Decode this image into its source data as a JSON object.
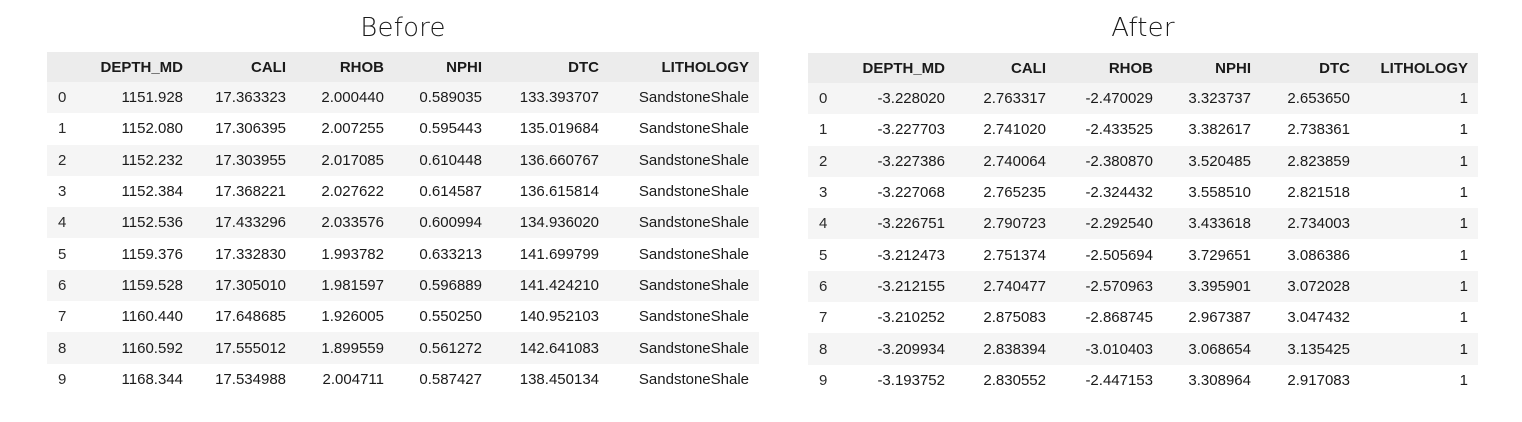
{
  "before": {
    "title": "Before",
    "columns": [
      "",
      "DEPTH_MD",
      "CALI",
      "RHOB",
      "NPHI",
      "DTC",
      "LITHOLOGY"
    ],
    "rows": [
      [
        "0",
        "1151.928",
        "17.363323",
        "2.000440",
        "0.589035",
        "133.393707",
        "SandstoneShale"
      ],
      [
        "1",
        "1152.080",
        "17.306395",
        "2.007255",
        "0.595443",
        "135.019684",
        "SandstoneShale"
      ],
      [
        "2",
        "1152.232",
        "17.303955",
        "2.017085",
        "0.610448",
        "136.660767",
        "SandstoneShale"
      ],
      [
        "3",
        "1152.384",
        "17.368221",
        "2.027622",
        "0.614587",
        "136.615814",
        "SandstoneShale"
      ],
      [
        "4",
        "1152.536",
        "17.433296",
        "2.033576",
        "0.600994",
        "134.936020",
        "SandstoneShale"
      ],
      [
        "5",
        "1159.376",
        "17.332830",
        "1.993782",
        "0.633213",
        "141.699799",
        "SandstoneShale"
      ],
      [
        "6",
        "1159.528",
        "17.305010",
        "1.981597",
        "0.596889",
        "141.424210",
        "SandstoneShale"
      ],
      [
        "7",
        "1160.440",
        "17.648685",
        "1.926005",
        "0.550250",
        "140.952103",
        "SandstoneShale"
      ],
      [
        "8",
        "1160.592",
        "17.555012",
        "1.899559",
        "0.561272",
        "142.641083",
        "SandstoneShale"
      ],
      [
        "9",
        "1168.344",
        "17.534988",
        "2.004711",
        "0.587427",
        "138.450134",
        "SandstoneShale"
      ]
    ]
  },
  "after": {
    "title": "After",
    "columns": [
      "",
      "DEPTH_MD",
      "CALI",
      "RHOB",
      "NPHI",
      "DTC",
      "LITHOLOGY"
    ],
    "rows": [
      [
        "0",
        "-3.228020",
        "2.763317",
        "-2.470029",
        "3.323737",
        "2.653650",
        "1"
      ],
      [
        "1",
        "-3.227703",
        "2.741020",
        "-2.433525",
        "3.382617",
        "2.738361",
        "1"
      ],
      [
        "2",
        "-3.227386",
        "2.740064",
        "-2.380870",
        "3.520485",
        "2.823859",
        "1"
      ],
      [
        "3",
        "-3.227068",
        "2.765235",
        "-2.324432",
        "3.558510",
        "2.821518",
        "1"
      ],
      [
        "4",
        "-3.226751",
        "2.790723",
        "-2.292540",
        "3.433618",
        "2.734003",
        "1"
      ],
      [
        "5",
        "-3.212473",
        "2.751374",
        "-2.505694",
        "3.729651",
        "3.086386",
        "1"
      ],
      [
        "6",
        "-3.212155",
        "2.740477",
        "-2.570963",
        "3.395901",
        "3.072028",
        "1"
      ],
      [
        "7",
        "-3.210252",
        "2.875083",
        "-2.868745",
        "2.967387",
        "3.047432",
        "1"
      ],
      [
        "8",
        "-3.209934",
        "2.838394",
        "-3.010403",
        "3.068654",
        "3.135425",
        "1"
      ],
      [
        "9",
        "-3.193752",
        "2.830552",
        "-2.447153",
        "3.308964",
        "2.917083",
        "1"
      ]
    ]
  }
}
